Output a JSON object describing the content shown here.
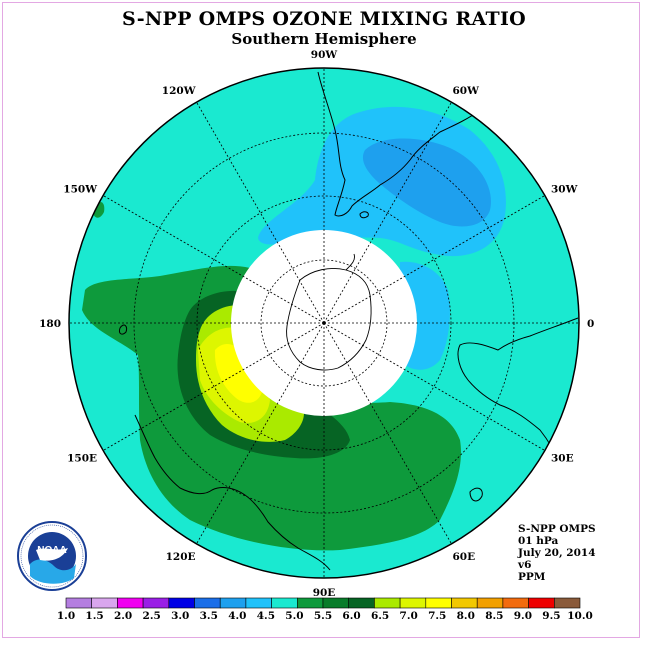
{
  "title": "S-NPP OMPS OZONE MIXING RATIO",
  "subtitle": "Southern Hemisphere",
  "info": {
    "instrument": "S-NPP OMPS",
    "level": "01 hPa",
    "date": "July 20, 2014",
    "version": "v6",
    "units": "PPM"
  },
  "longitude_labels": [
    {
      "lon": 90,
      "text": "90W"
    },
    {
      "lon": 60,
      "text": "60W"
    },
    {
      "lon": 30,
      "text": "30W"
    },
    {
      "lon": 0,
      "text": "0"
    },
    {
      "lon": -30,
      "text": "30E"
    },
    {
      "lon": -60,
      "text": "60E"
    },
    {
      "lon": -90,
      "text": "90E"
    },
    {
      "lon": -120,
      "text": "120E"
    },
    {
      "lon": -150,
      "text": "150E"
    },
    {
      "lon": 180,
      "text": "180"
    },
    {
      "lon": 150,
      "text": "150W"
    },
    {
      "lon": 120,
      "text": "120W"
    }
  ],
  "legend": {
    "ticks": [
      "1.0",
      "1.5",
      "2.0",
      "2.5",
      "3.0",
      "3.5",
      "4.0",
      "4.5",
      "5.0",
      "5.5",
      "6.0",
      "6.5",
      "7.0",
      "7.5",
      "8.0",
      "8.5",
      "9.0",
      "9.5",
      "10.0"
    ],
    "colors": [
      "#b47ee0",
      "#d9a6ee",
      "#f000f0",
      "#9a1fe6",
      "#0000e6",
      "#1a6ee8",
      "#1ea0ee",
      "#20c2fa",
      "#1ae9d0",
      "#0e9a3c",
      "#087c2a",
      "#066424",
      "#aaea00",
      "#ddf600",
      "#ffff00",
      "#f2c800",
      "#f2a000",
      "#f26b0e",
      "#ee0000",
      "#8a5a3a"
    ]
  },
  "logo_text": "NOAA"
}
